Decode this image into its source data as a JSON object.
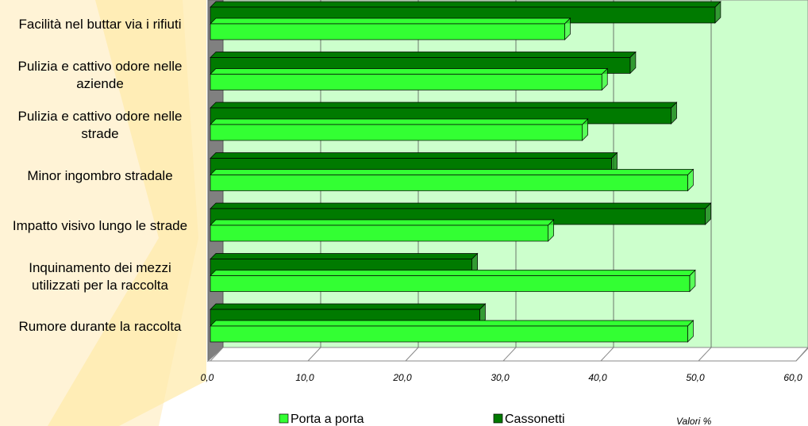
{
  "chart_data": {
    "type": "bar3d",
    "categories": [
      "Facilità nel buttar via i rifiuti",
      "Pulizia e cattivo odore nelle aziende",
      "Pulizia e cattivo odore nelle strade",
      "Minor ingombro stradale",
      "Impatto visivo lungo le strade",
      "Inquinamento dei mezzi utilizzati per la raccolta",
      "Rumore durante la raccolta"
    ],
    "series": [
      {
        "name": "Porta a porta",
        "color": "#33ff33",
        "values": [
          36.3,
          40.1,
          38.1,
          48.9,
          34.6,
          49.1,
          48.9
        ]
      },
      {
        "name": "Cassonetti",
        "color": "#007a00",
        "values": [
          51.7,
          43.0,
          47.2,
          41.1,
          50.7,
          26.8,
          27.6
        ]
      }
    ],
    "xlim": [
      0,
      60
    ],
    "xticks": [
      {
        "value": 0,
        "label": "0,0"
      },
      {
        "value": 10,
        "label": "10,0"
      },
      {
        "value": 20,
        "label": "20,0"
      },
      {
        "value": 30,
        "label": "30,0"
      },
      {
        "value": 40,
        "label": "40,0"
      },
      {
        "value": 50,
        "label": "50,0"
      },
      {
        "value": 60,
        "label": "60,0"
      }
    ],
    "note": "Valori %",
    "grid": true
  }
}
